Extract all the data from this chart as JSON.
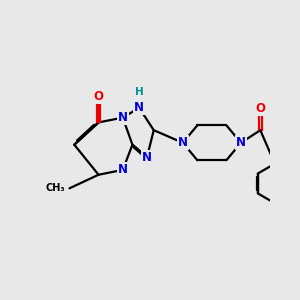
{
  "bg_color": "#e8e8e8",
  "bond_color": "#000000",
  "bond_width": 1.6,
  "atom_N_color": "#0000dd",
  "atom_O_color": "#ee0000",
  "atom_H_color": "#009090",
  "atom_C_color": "#000000",
  "font_size_atom": 8.5,
  "xlim": [
    0.0,
    10.0
  ],
  "ylim": [
    1.5,
    9.0
  ]
}
